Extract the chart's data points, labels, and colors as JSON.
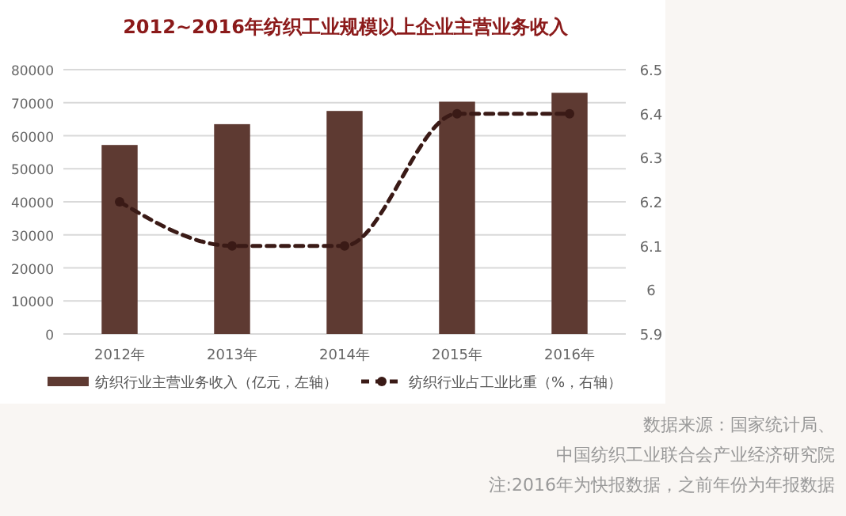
{
  "chart_data": {
    "type": "bar",
    "title": "2012~2016年纺织工业规模以上企业主营业务收入",
    "categories": [
      "2012年",
      "2013年",
      "2014年",
      "2015年",
      "2016年"
    ],
    "series": [
      {
        "name": "纺织行业主营业务收入（亿元，左轴）",
        "color": "#5e3a32",
        "values": [
          57200,
          63500,
          67500,
          70300,
          73000
        ]
      },
      {
        "name": "纺织行业占工业比重（%，右轴）",
        "type": "line",
        "axis": "y2",
        "color": "#3a1a16",
        "values": [
          6.2,
          6.1,
          6.1,
          6.4,
          6.4
        ]
      }
    ],
    "ylim": [
      0,
      80000
    ],
    "yticks": [
      0,
      10000,
      20000,
      30000,
      40000,
      50000,
      60000,
      70000,
      80000
    ],
    "y2lim": [
      5.9,
      6.5
    ],
    "y2ticks": [
      5.9,
      6,
      6.1,
      6.2,
      6.3,
      6.4,
      6.5
    ],
    "grid": "y",
    "legend": "bottom",
    "marker": "circle",
    "line_style": "dashed",
    "annotations": [
      "数据来源：国家统计局、",
      "中国纺织工业联合会产业经济研究院",
      "注:2016年为快报数据，之前年份为年报数据"
    ]
  }
}
